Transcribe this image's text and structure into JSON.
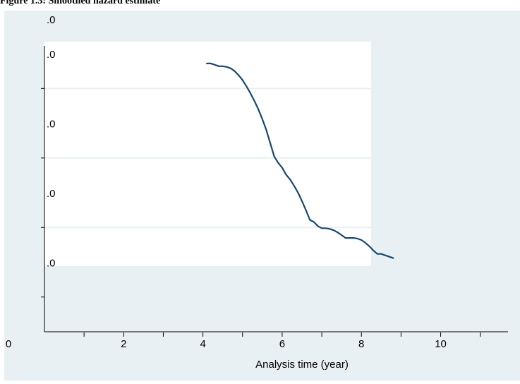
{
  "figure": {
    "caption": "Figure 1.3: Smoothed hazard estimate"
  },
  "colors": {
    "plot_region_background": "#e9f0f3",
    "inner_panel_background": "#ffffff",
    "gridline": "#e9f0f3",
    "axis": "#000000",
    "series_line": "#1a476f",
    "text": "#000000"
  },
  "chart_data": {
    "type": "line",
    "title": "",
    "xlabel": "Analysis time (year)",
    "ylabel": "",
    "xlim": [
      0,
      11.7
    ],
    "ylim": [
      0,
      0.046
    ],
    "grid": true,
    "x_ticks": [
      {
        "value": 0,
        "label": "0"
      },
      {
        "value": 1,
        "label": ""
      },
      {
        "value": 2,
        "label": "2"
      },
      {
        "value": 3,
        "label": ""
      },
      {
        "value": 4,
        "label": "4"
      },
      {
        "value": 5,
        "label": ""
      },
      {
        "value": 6,
        "label": "6"
      },
      {
        "value": 7,
        "label": ""
      },
      {
        "value": 8,
        "label": "8"
      },
      {
        "value": 9,
        "label": ""
      },
      {
        "value": 10,
        "label": "10"
      },
      {
        "value": 11,
        "label": ""
      }
    ],
    "y_ticks": [
      {
        "value": 0.005,
        "label": ""
      },
      {
        "value": 0.01,
        "label": ".0"
      },
      {
        "value": 0.015,
        "label": ""
      },
      {
        "value": 0.02,
        "label": ".0"
      },
      {
        "value": 0.025,
        "label": ""
      },
      {
        "value": 0.03,
        "label": ".0"
      },
      {
        "value": 0.035,
        "label": ""
      },
      {
        "value": 0.04,
        "label": ".0"
      },
      {
        "value": 0.045,
        "label": ".0"
      }
    ],
    "series": [
      {
        "points": [
          [
            4.1,
            0.0386
          ],
          [
            4.2,
            0.0386
          ],
          [
            4.3,
            0.0384
          ],
          [
            4.4,
            0.0382
          ],
          [
            4.5,
            0.0382
          ],
          [
            4.6,
            0.0381
          ],
          [
            4.7,
            0.0379
          ],
          [
            4.8,
            0.0375
          ],
          [
            4.9,
            0.0369
          ],
          [
            5.0,
            0.0362
          ],
          [
            5.1,
            0.0353
          ],
          [
            5.2,
            0.0343
          ],
          [
            5.3,
            0.0332
          ],
          [
            5.4,
            0.032
          ],
          [
            5.5,
            0.0306
          ],
          [
            5.6,
            0.029
          ],
          [
            5.7,
            0.0271
          ],
          [
            5.8,
            0.0252
          ],
          [
            5.9,
            0.0243
          ],
          [
            6.0,
            0.0236
          ],
          [
            6.1,
            0.0226
          ],
          [
            6.2,
            0.0219
          ],
          [
            6.3,
            0.021
          ],
          [
            6.4,
            0.02
          ],
          [
            6.5,
            0.0188
          ],
          [
            6.6,
            0.0175
          ],
          [
            6.7,
            0.0161
          ],
          [
            6.8,
            0.0158
          ],
          [
            6.9,
            0.0152
          ],
          [
            7.0,
            0.0149
          ],
          [
            7.1,
            0.0149
          ],
          [
            7.2,
            0.0148
          ],
          [
            7.3,
            0.0146
          ],
          [
            7.4,
            0.0143
          ],
          [
            7.5,
            0.0139
          ],
          [
            7.6,
            0.0135
          ],
          [
            7.7,
            0.0135
          ],
          [
            7.8,
            0.0135
          ],
          [
            7.9,
            0.0134
          ],
          [
            8.0,
            0.0132
          ],
          [
            8.1,
            0.0128
          ],
          [
            8.2,
            0.0123
          ],
          [
            8.3,
            0.0117
          ],
          [
            8.4,
            0.0112
          ],
          [
            8.5,
            0.0112
          ],
          [
            8.6,
            0.011
          ],
          [
            8.7,
            0.0108
          ],
          [
            8.8,
            0.0106
          ]
        ]
      }
    ]
  }
}
